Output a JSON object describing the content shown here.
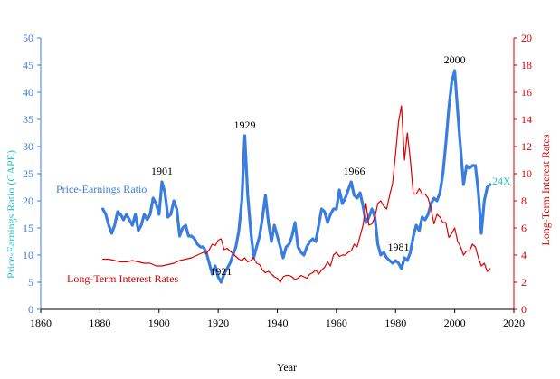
{
  "chart_data": {
    "type": "line",
    "xlabel": "Year",
    "ylabel_left": "Price-Earnings Ratio (CAPE)",
    "ylabel_right": "Long-Term Interest Rates",
    "xlim": [
      1860,
      2020
    ],
    "ylim_left": [
      0,
      50
    ],
    "ylim_right": [
      0,
      20
    ],
    "x_ticks": [
      "1860",
      "1880",
      "1900",
      "1920",
      "1940",
      "1960",
      "1980",
      "2000",
      "2020"
    ],
    "y_ticks_left": [
      "0",
      "5",
      "10",
      "15",
      "20",
      "25",
      "30",
      "35",
      "40",
      "45",
      "50"
    ],
    "y_ticks_right": [
      "0",
      "2",
      "4",
      "6",
      "8",
      "10",
      "12",
      "14",
      "16",
      "18",
      "20"
    ],
    "grid": false,
    "colors": {
      "pe": "#3b7ddd",
      "rates": "#dd0000",
      "left_axis": "#3b7ddd",
      "right_axis": "#dd0000",
      "annotation": "#000000",
      "current": "#2abfbf"
    },
    "series": [
      {
        "name": "Price-Earnings Ratio",
        "axis": "left",
        "x": [
          1881,
          1882,
          1883,
          1884,
          1885,
          1886,
          1887,
          1888,
          1889,
          1890,
          1891,
          1892,
          1893,
          1894,
          1895,
          1896,
          1897,
          1898,
          1899,
          1900,
          1901,
          1902,
          1903,
          1904,
          1905,
          1906,
          1907,
          1908,
          1909,
          1910,
          1911,
          1912,
          1913,
          1914,
          1915,
          1916,
          1917,
          1918,
          1919,
          1920,
          1921,
          1922,
          1923,
          1924,
          1925,
          1926,
          1927,
          1928,
          1929,
          1930,
          1931,
          1932,
          1933,
          1934,
          1935,
          1936,
          1937,
          1938,
          1939,
          1940,
          1941,
          1942,
          1943,
          1944,
          1945,
          1946,
          1947,
          1948,
          1949,
          1950,
          1951,
          1952,
          1953,
          1954,
          1955,
          1956,
          1957,
          1958,
          1959,
          1960,
          1961,
          1962,
          1963,
          1964,
          1965,
          1966,
          1967,
          1968,
          1969,
          1970,
          1971,
          1972,
          1973,
          1974,
          1975,
          1976,
          1977,
          1978,
          1979,
          1980,
          1981,
          1982,
          1983,
          1984,
          1985,
          1986,
          1987,
          1988,
          1989,
          1990,
          1991,
          1992,
          1993,
          1994,
          1995,
          1996,
          1997,
          1998,
          1999,
          2000,
          2001,
          2002,
          2003,
          2004,
          2005,
          2006,
          2007,
          2008,
          2009,
          2010,
          2011,
          2012
        ],
        "values": [
          18.5,
          17.5,
          15.5,
          14.0,
          15.5,
          18.0,
          17.5,
          16.5,
          17.5,
          16.5,
          15.5,
          17.5,
          14.5,
          15.5,
          17.5,
          16.5,
          17.5,
          20.5,
          19.5,
          17.5,
          23.5,
          21.5,
          17.0,
          17.5,
          20.0,
          18.5,
          13.5,
          15.0,
          15.5,
          13.5,
          13.5,
          13.0,
          12.0,
          11.5,
          11.5,
          10.5,
          8.5,
          6.5,
          8.0,
          6.0,
          5.0,
          6.5,
          7.5,
          8.5,
          10.0,
          11.5,
          14.5,
          20.0,
          32.0,
          21.0,
          14.5,
          9.5,
          11.5,
          13.5,
          17.0,
          21.0,
          16.0,
          12.5,
          15.5,
          13.5,
          11.5,
          9.5,
          11.5,
          12.0,
          13.5,
          16.0,
          11.5,
          10.5,
          10.0,
          11.5,
          12.5,
          13.0,
          12.5,
          15.5,
          18.5,
          18.0,
          16.0,
          17.5,
          18.5,
          18.5,
          22.0,
          19.5,
          20.5,
          22.0,
          23.5,
          21.0,
          20.5,
          21.5,
          19.0,
          16.0,
          17.0,
          18.5,
          17.0,
          12.0,
          10.0,
          10.5,
          9.5,
          9.0,
          8.5,
          9.0,
          8.5,
          7.5,
          9.5,
          9.0,
          10.5,
          13.5,
          15.5,
          14.5,
          17.0,
          16.5,
          17.5,
          19.5,
          20.5,
          20.0,
          21.5,
          25.0,
          30.5,
          37.0,
          42.0,
          44.0,
          36.5,
          29.5,
          23.0,
          26.5,
          26.0,
          26.5,
          26.5,
          21.5,
          14.0,
          20.0,
          22.5,
          23.0
        ]
      },
      {
        "name": "Long-Term Interest Rates",
        "axis": "right",
        "x": [
          1881,
          1883,
          1885,
          1887,
          1889,
          1891,
          1893,
          1895,
          1897,
          1899,
          1901,
          1903,
          1905,
          1907,
          1909,
          1911,
          1913,
          1915,
          1916,
          1917,
          1918,
          1919,
          1920,
          1921,
          1922,
          1923,
          1924,
          1925,
          1926,
          1927,
          1928,
          1929,
          1930,
          1931,
          1932,
          1933,
          1934,
          1935,
          1936,
          1937,
          1938,
          1939,
          1940,
          1941,
          1942,
          1943,
          1944,
          1945,
          1946,
          1947,
          1948,
          1949,
          1950,
          1951,
          1952,
          1953,
          1954,
          1955,
          1956,
          1957,
          1958,
          1959,
          1960,
          1961,
          1962,
          1963,
          1964,
          1965,
          1966,
          1967,
          1968,
          1969,
          1970,
          1971,
          1972,
          1973,
          1974,
          1975,
          1976,
          1977,
          1978,
          1979,
          1980,
          1981,
          1982,
          1983,
          1984,
          1985,
          1986,
          1987,
          1988,
          1989,
          1990,
          1991,
          1992,
          1993,
          1994,
          1995,
          1996,
          1997,
          1998,
          1999,
          2000,
          2001,
          2002,
          2003,
          2004,
          2005,
          2006,
          2007,
          2008,
          2009,
          2010,
          2011,
          2012
        ],
        "values": [
          3.7,
          3.7,
          3.6,
          3.5,
          3.5,
          3.6,
          3.5,
          3.4,
          3.4,
          3.2,
          3.2,
          3.3,
          3.4,
          3.6,
          3.7,
          3.8,
          4.0,
          4.2,
          4.1,
          4.4,
          4.8,
          4.7,
          5.1,
          5.2,
          4.4,
          4.5,
          4.3,
          4.1,
          3.9,
          3.7,
          3.6,
          3.8,
          3.5,
          3.6,
          3.8,
          3.4,
          3.3,
          2.9,
          2.7,
          2.8,
          2.6,
          2.4,
          2.3,
          2.0,
          2.4,
          2.5,
          2.5,
          2.4,
          2.2,
          2.3,
          2.5,
          2.4,
          2.3,
          2.6,
          2.7,
          2.9,
          2.6,
          2.9,
          3.1,
          3.5,
          3.2,
          4.0,
          4.2,
          3.9,
          4.0,
          4.0,
          4.2,
          4.3,
          4.8,
          4.6,
          5.4,
          6.2,
          7.8,
          6.2,
          6.3,
          6.8,
          7.8,
          8.0,
          7.6,
          7.4,
          8.4,
          9.3,
          11.5,
          13.8,
          15.0,
          11.0,
          13.0,
          11.0,
          8.5,
          8.5,
          8.9,
          8.5,
          8.5,
          8.2,
          7.4,
          6.3,
          7.0,
          6.8,
          6.4,
          6.4,
          5.3,
          5.6,
          6.0,
          5.0,
          4.6,
          4.0,
          4.3,
          4.3,
          4.8,
          4.6,
          3.8,
          3.2,
          3.4,
          2.8,
          3.0
        ]
      }
    ],
    "annotations": [
      {
        "text": "1901",
        "x": 1901,
        "y": 23.5
      },
      {
        "text": "1921",
        "x": 1921,
        "y": 5.0
      },
      {
        "text": "1929",
        "x": 1929,
        "y": 32.0
      },
      {
        "text": "1966",
        "x": 1966,
        "y": 23.5
      },
      {
        "text": "1981",
        "x": 1981,
        "y": 9.5
      },
      {
        "text": "2000",
        "x": 2000,
        "y": 44.0
      }
    ],
    "series_labels": [
      {
        "text": "Price-Earnings Ratio",
        "series": 0
      },
      {
        "text": "Long-Term Interest Rates",
        "series": 1
      }
    ],
    "current_label": "24X"
  }
}
